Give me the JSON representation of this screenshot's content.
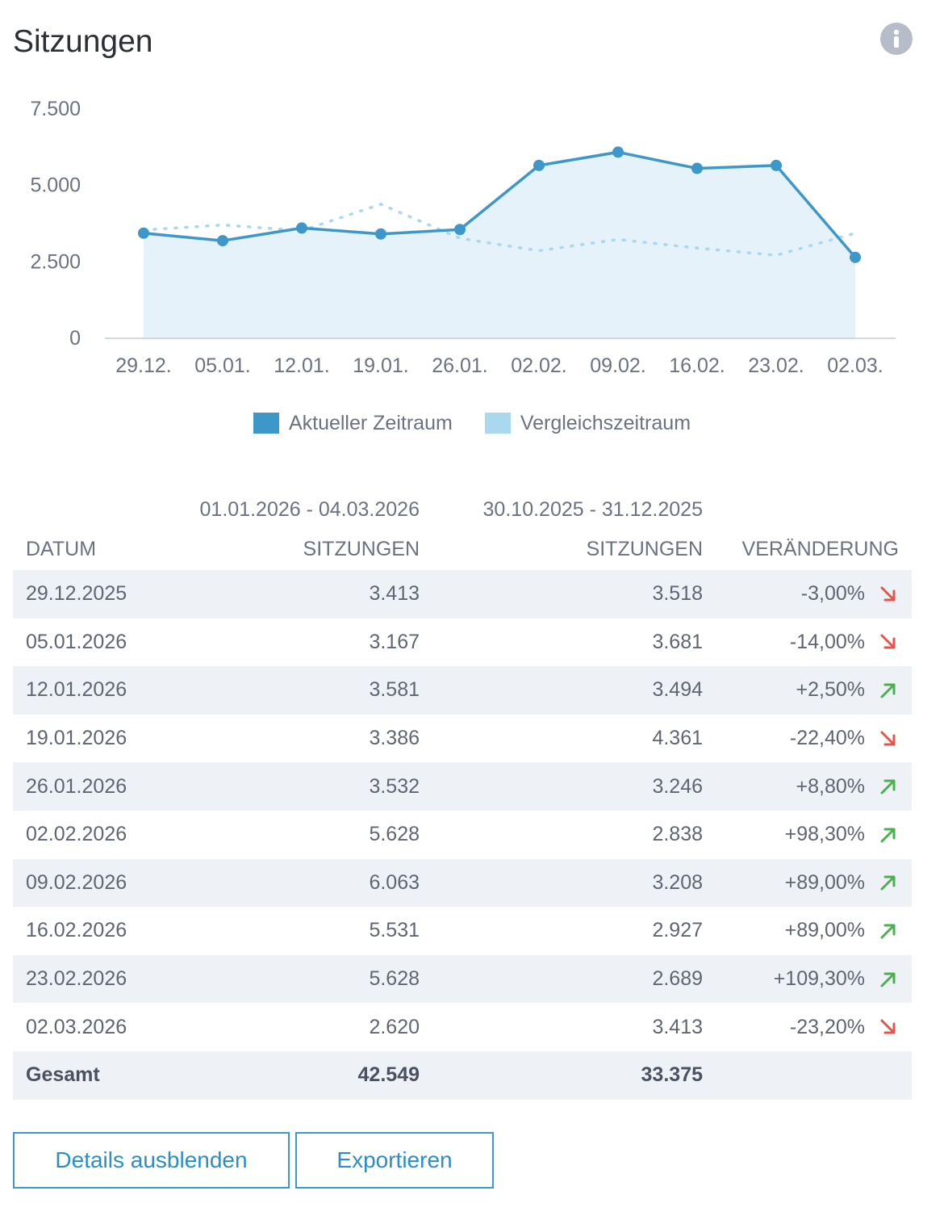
{
  "header": {
    "title": "Sitzungen",
    "info_icon": "info-icon"
  },
  "colors": {
    "current": "#3e97c9",
    "compare": "#a9d8ef",
    "area": "#e6f2fa",
    "up": "#4caf50",
    "down": "#e2574c"
  },
  "chart_data": {
    "type": "line",
    "title": "Sitzungen",
    "xlabel": "",
    "ylabel": "",
    "categories": [
      "29.12.",
      "05.01.",
      "12.01.",
      "19.01.",
      "26.01.",
      "02.02.",
      "09.02.",
      "16.02.",
      "23.02.",
      "02.03."
    ],
    "series": [
      {
        "name": "Aktueller Zeitraum",
        "style": "solid-with-area",
        "values": [
          3413,
          3167,
          3581,
          3386,
          3532,
          5628,
          6063,
          5531,
          5628,
          2620
        ]
      },
      {
        "name": "Vergleichszeitraum",
        "style": "dotted",
        "values": [
          3518,
          3681,
          3494,
          4361,
          3246,
          2838,
          3208,
          2927,
          2689,
          3413
        ]
      }
    ],
    "ylim": [
      0,
      7500
    ],
    "yticks": [
      0,
      2500,
      5000,
      7500
    ],
    "ytick_labels": [
      "0",
      "2.500",
      "5.000",
      "7.500"
    ],
    "legend_position": "bottom-center",
    "grid": false
  },
  "legend": {
    "current_label": "Aktueller Zeitraum",
    "compare_label": "Vergleichszeitraum"
  },
  "table": {
    "period_current": "01.01.2026 - 04.03.2026",
    "period_compare": "30.10.2025 - 31.12.2025",
    "headers": {
      "date": "DATUM",
      "current": "SITZUNGEN",
      "compare": "SITZUNGEN",
      "change": "VERÄNDERUNG"
    },
    "rows": [
      {
        "date": "29.12.2025",
        "current": "3.413",
        "compare": "3.518",
        "change": "-3,00%",
        "trend": "down"
      },
      {
        "date": "05.01.2026",
        "current": "3.167",
        "compare": "3.681",
        "change": "-14,00%",
        "trend": "down"
      },
      {
        "date": "12.01.2026",
        "current": "3.581",
        "compare": "3.494",
        "change": "+2,50%",
        "trend": "up"
      },
      {
        "date": "19.01.2026",
        "current": "3.386",
        "compare": "4.361",
        "change": "-22,40%",
        "trend": "down"
      },
      {
        "date": "26.01.2026",
        "current": "3.532",
        "compare": "3.246",
        "change": "+8,80%",
        "trend": "up"
      },
      {
        "date": "02.02.2026",
        "current": "5.628",
        "compare": "2.838",
        "change": "+98,30%",
        "trend": "up"
      },
      {
        "date": "09.02.2026",
        "current": "6.063",
        "compare": "3.208",
        "change": "+89,00%",
        "trend": "up"
      },
      {
        "date": "16.02.2026",
        "current": "5.531",
        "compare": "2.927",
        "change": "+89,00%",
        "trend": "up"
      },
      {
        "date": "23.02.2026",
        "current": "5.628",
        "compare": "2.689",
        "change": "+109,30%",
        "trend": "up"
      },
      {
        "date": "02.03.2026",
        "current": "2.620",
        "compare": "3.413",
        "change": "-23,20%",
        "trend": "down"
      }
    ],
    "total": {
      "label": "Gesamt",
      "current": "42.549",
      "compare": "33.375"
    }
  },
  "buttons": {
    "details_label": "Details ausblenden",
    "export_label": "Exportieren"
  }
}
